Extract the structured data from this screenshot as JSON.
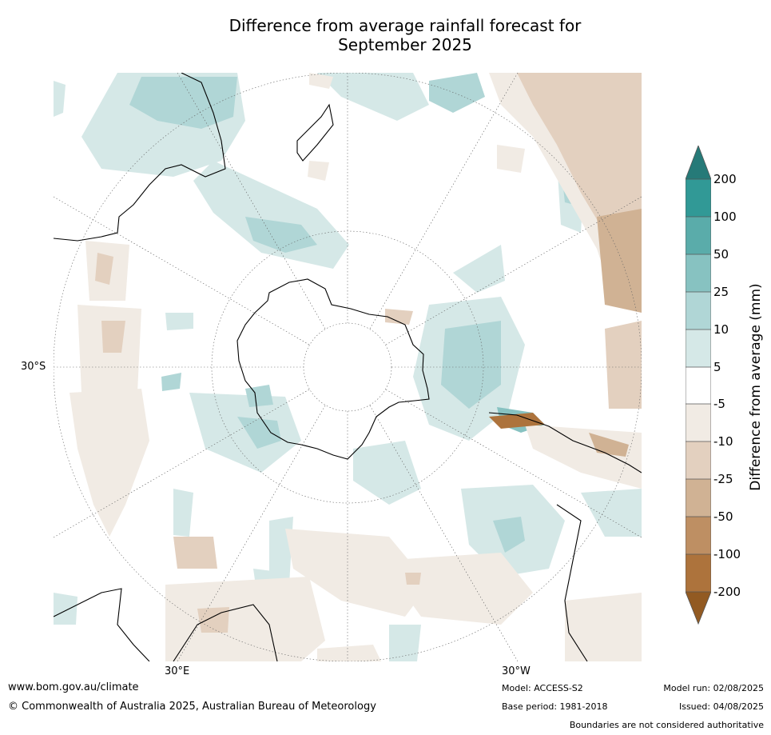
{
  "title_line1": "Difference from average rainfall forecast for",
  "title_line2": "September 2025",
  "map": {
    "lat_label": "30°S",
    "lon_label_east": "30°E",
    "lon_label_west": "30°W"
  },
  "colorbar": {
    "label": "Difference from average (mm)",
    "ticks": [
      "200",
      "100",
      "50",
      "25",
      "10",
      "5",
      "-5",
      "-10",
      "-25",
      "-50",
      "-100",
      "-200"
    ],
    "colors": {
      "over": "#267a78",
      "c200_100": "#319996",
      "c100_50": "#5aacaa",
      "c50_25": "#87c2c1",
      "c25_10": "#b0d6d6",
      "c10_5": "#d5e8e7",
      "c5_m5": "#ffffff",
      "cm5_m10": "#f1ebe4",
      "cm10_m25": "#e3d0bf",
      "cm25_m50": "#d0b294",
      "cm50_m100": "#be8f63",
      "cm100_m200": "#ad733c",
      "under": "#925a22"
    }
  },
  "footer": {
    "website": "www.bom.gov.au/climate",
    "copyright": "© Commonwealth of Australia 2025, Australian Bureau of Meteorology",
    "model": "Model: ACCESS-S2",
    "base_period": "Base period: 1981-2018",
    "model_run": "Model run: 02/08/2025",
    "issued": "Issued: 04/08/2025",
    "disclaimer": "Boundaries are not considered authoritative"
  }
}
